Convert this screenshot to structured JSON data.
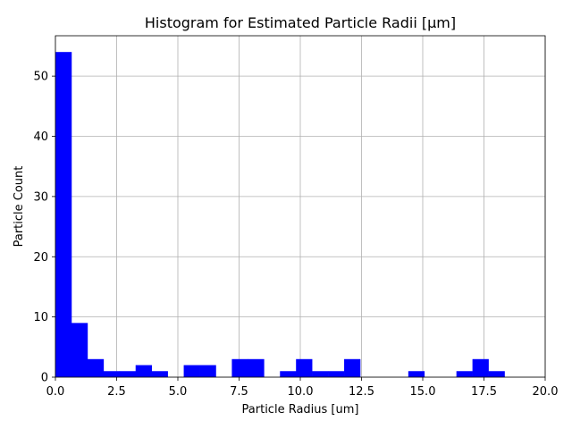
{
  "chart_data": {
    "type": "bar",
    "subtype": "histogram",
    "title": "Histogram for Estimated Particle Radii [μm]",
    "xlabel": "Particle Radius [um]",
    "ylabel": "Particle Count",
    "xlim": [
      0,
      20
    ],
    "ylim": [
      0,
      56.7
    ],
    "bar_color": "#0000ff",
    "grid": true,
    "x_ticks": [
      "0.0",
      "2.5",
      "5.0",
      "7.5",
      "10.0",
      "12.5",
      "15.0",
      "17.5",
      "20.0"
    ],
    "x_tick_values": [
      0,
      2.5,
      5,
      7.5,
      10,
      12.5,
      15,
      17.5,
      20
    ],
    "y_ticks": [
      "0",
      "10",
      "20",
      "30",
      "40",
      "50"
    ],
    "y_tick_values": [
      0,
      10,
      20,
      30,
      40,
      50
    ],
    "bin_width": 0.655,
    "bin_starts": [
      0,
      0.655,
      1.31,
      1.965,
      2.62,
      3.275,
      3.93,
      4.585,
      5.24,
      5.895,
      6.55,
      7.205,
      7.86,
      8.515,
      9.17,
      9.825,
      10.48,
      11.135,
      11.79,
      12.445,
      13.1,
      13.755,
      14.41,
      15.065,
      15.72,
      16.375,
      17.03,
      17.685
    ],
    "values": [
      54,
      9,
      3,
      1,
      1,
      2,
      1,
      0,
      2,
      2,
      0,
      3,
      3,
      0,
      1,
      3,
      1,
      1,
      3,
      0,
      0,
      0,
      1,
      0,
      0,
      1,
      3,
      1
    ]
  }
}
